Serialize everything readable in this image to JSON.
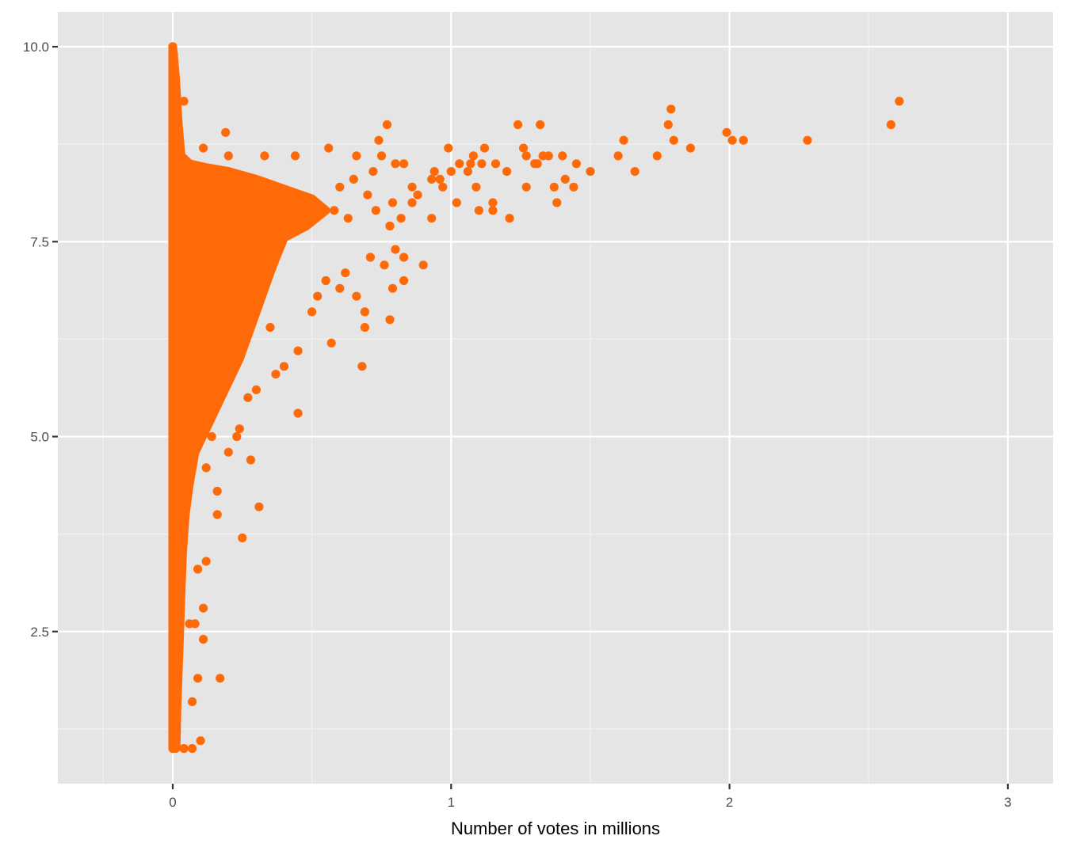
{
  "chart_data": {
    "type": "scatter",
    "title": "",
    "xlabel": "Number of votes in millions",
    "ylabel": "",
    "xlim": [
      -0.4,
      3.17
    ],
    "ylim": [
      0.65,
      10.43
    ],
    "grid": true,
    "legend": "none",
    "point_color": "#FF6A08",
    "panel_background": "#E5E5E5",
    "grid_color": "#FFFFFF",
    "x_ticks": [
      0,
      1,
      2,
      3
    ],
    "x_tick_labels": [
      "0",
      "1",
      "2",
      "3"
    ],
    "y_ticks": [
      2.5,
      5.0,
      7.5,
      10.0
    ],
    "y_tick_labels": [
      "2.5",
      "5.0",
      "7.5",
      "10.0"
    ],
    "dense_region_envelope": [
      [
        0.0,
        1.0
      ],
      [
        0.0,
        10.0
      ],
      [
        0.01,
        9.6
      ],
      [
        0.02,
        9.0
      ],
      [
        0.03,
        8.6
      ],
      [
        0.06,
        8.5
      ],
      [
        0.12,
        8.45
      ],
      [
        0.2,
        8.4
      ],
      [
        0.3,
        8.3
      ],
      [
        0.38,
        8.2
      ],
      [
        0.5,
        8.05
      ],
      [
        0.55,
        7.9
      ],
      [
        0.48,
        7.7
      ],
      [
        0.4,
        7.55
      ],
      [
        0.36,
        7.2
      ],
      [
        0.33,
        6.9
      ],
      [
        0.3,
        6.6
      ],
      [
        0.27,
        6.3
      ],
      [
        0.24,
        6.0
      ],
      [
        0.2,
        5.7
      ],
      [
        0.16,
        5.4
      ],
      [
        0.12,
        5.1
      ],
      [
        0.08,
        4.8
      ],
      [
        0.06,
        4.4
      ],
      [
        0.045,
        4.0
      ],
      [
        0.035,
        3.5
      ],
      [
        0.03,
        3.0
      ],
      [
        0.025,
        2.5
      ],
      [
        0.02,
        2.0
      ],
      [
        0.015,
        1.5
      ],
      [
        0.012,
        1.0
      ]
    ],
    "points": [
      {
        "x": 0.0,
        "y": 10.0
      },
      {
        "x": 0.003,
        "y": 9.9
      },
      {
        "x": 0.005,
        "y": 9.7
      },
      {
        "x": 0.04,
        "y": 9.3
      },
      {
        "x": 0.19,
        "y": 8.9
      },
      {
        "x": 0.11,
        "y": 8.7
      },
      {
        "x": 0.2,
        "y": 8.6
      },
      {
        "x": 0.33,
        "y": 8.6
      },
      {
        "x": 0.44,
        "y": 8.6
      },
      {
        "x": 0.56,
        "y": 8.7
      },
      {
        "x": 0.66,
        "y": 8.6
      },
      {
        "x": 0.74,
        "y": 8.8
      },
      {
        "x": 0.77,
        "y": 9.0
      },
      {
        "x": 0.75,
        "y": 8.6
      },
      {
        "x": 0.8,
        "y": 8.5
      },
      {
        "x": 0.83,
        "y": 8.5
      },
      {
        "x": 0.86,
        "y": 8.2
      },
      {
        "x": 0.93,
        "y": 8.3
      },
      {
        "x": 0.94,
        "y": 8.4
      },
      {
        "x": 0.96,
        "y": 8.3
      },
      {
        "x": 0.99,
        "y": 8.7
      },
      {
        "x": 0.97,
        "y": 8.2
      },
      {
        "x": 1.0,
        "y": 8.4
      },
      {
        "x": 1.03,
        "y": 8.5
      },
      {
        "x": 1.06,
        "y": 8.4
      },
      {
        "x": 1.07,
        "y": 8.5
      },
      {
        "x": 1.08,
        "y": 8.6
      },
      {
        "x": 1.11,
        "y": 8.5
      },
      {
        "x": 1.12,
        "y": 8.7
      },
      {
        "x": 1.16,
        "y": 8.5
      },
      {
        "x": 1.2,
        "y": 8.4
      },
      {
        "x": 1.24,
        "y": 9.0
      },
      {
        "x": 1.26,
        "y": 8.7
      },
      {
        "x": 1.27,
        "y": 8.6
      },
      {
        "x": 1.3,
        "y": 8.5
      },
      {
        "x": 1.31,
        "y": 8.5
      },
      {
        "x": 1.32,
        "y": 9.0
      },
      {
        "x": 1.33,
        "y": 8.6
      },
      {
        "x": 1.35,
        "y": 8.6
      },
      {
        "x": 1.4,
        "y": 8.6
      },
      {
        "x": 1.45,
        "y": 8.5
      },
      {
        "x": 1.5,
        "y": 8.4
      },
      {
        "x": 1.41,
        "y": 8.3
      },
      {
        "x": 1.37,
        "y": 8.2
      },
      {
        "x": 1.44,
        "y": 8.2
      },
      {
        "x": 1.27,
        "y": 8.2
      },
      {
        "x": 1.38,
        "y": 8.0
      },
      {
        "x": 1.21,
        "y": 7.8
      },
      {
        "x": 1.15,
        "y": 7.9
      },
      {
        "x": 1.15,
        "y": 8.0
      },
      {
        "x": 1.1,
        "y": 7.9
      },
      {
        "x": 1.09,
        "y": 8.2
      },
      {
        "x": 1.02,
        "y": 8.0
      },
      {
        "x": 0.93,
        "y": 7.8
      },
      {
        "x": 0.9,
        "y": 7.2
      },
      {
        "x": 0.83,
        "y": 7.0
      },
      {
        "x": 0.83,
        "y": 7.3
      },
      {
        "x": 0.79,
        "y": 6.9
      },
      {
        "x": 0.78,
        "y": 6.5
      },
      {
        "x": 0.69,
        "y": 6.6
      },
      {
        "x": 0.69,
        "y": 6.4
      },
      {
        "x": 0.68,
        "y": 5.9
      },
      {
        "x": 0.57,
        "y": 6.2
      },
      {
        "x": 0.45,
        "y": 6.1
      },
      {
        "x": 0.45,
        "y": 5.3
      },
      {
        "x": 0.4,
        "y": 5.9
      },
      {
        "x": 0.37,
        "y": 5.8
      },
      {
        "x": 0.31,
        "y": 4.1
      },
      {
        "x": 0.28,
        "y": 4.7
      },
      {
        "x": 0.25,
        "y": 3.7
      },
      {
        "x": 0.16,
        "y": 4.3
      },
      {
        "x": 0.16,
        "y": 4.0
      },
      {
        "x": 0.12,
        "y": 4.6
      },
      {
        "x": 0.12,
        "y": 3.4
      },
      {
        "x": 0.11,
        "y": 2.8
      },
      {
        "x": 0.11,
        "y": 2.4
      },
      {
        "x": 0.1,
        "y": 1.1
      },
      {
        "x": 0.07,
        "y": 1.0
      },
      {
        "x": 0.04,
        "y": 1.0
      },
      {
        "x": 0.07,
        "y": 1.6
      },
      {
        "x": 0.09,
        "y": 1.9
      },
      {
        "x": 0.17,
        "y": 1.9
      },
      {
        "x": 0.09,
        "y": 3.3
      },
      {
        "x": 0.06,
        "y": 2.6
      },
      {
        "x": 0.08,
        "y": 2.6
      },
      {
        "x": 0.23,
        "y": 5.0
      },
      {
        "x": 0.24,
        "y": 5.1
      },
      {
        "x": 0.2,
        "y": 4.8
      },
      {
        "x": 0.14,
        "y": 5.0
      },
      {
        "x": 0.27,
        "y": 5.5
      },
      {
        "x": 0.3,
        "y": 5.6
      },
      {
        "x": 0.35,
        "y": 6.4
      },
      {
        "x": 0.5,
        "y": 6.6
      },
      {
        "x": 0.52,
        "y": 6.8
      },
      {
        "x": 0.55,
        "y": 7.0
      },
      {
        "x": 0.6,
        "y": 6.9
      },
      {
        "x": 0.62,
        "y": 7.1
      },
      {
        "x": 0.66,
        "y": 6.8
      },
      {
        "x": 0.71,
        "y": 7.3
      },
      {
        "x": 0.76,
        "y": 7.2
      },
      {
        "x": 0.8,
        "y": 7.4
      },
      {
        "x": 0.82,
        "y": 7.8
      },
      {
        "x": 0.78,
        "y": 7.7
      },
      {
        "x": 0.86,
        "y": 8.0
      },
      {
        "x": 0.88,
        "y": 8.1
      },
      {
        "x": 0.7,
        "y": 8.1
      },
      {
        "x": 0.65,
        "y": 8.3
      },
      {
        "x": 0.6,
        "y": 8.2
      },
      {
        "x": 0.72,
        "y": 8.4
      },
      {
        "x": 0.79,
        "y": 8.0
      },
      {
        "x": 0.73,
        "y": 7.9
      },
      {
        "x": 0.63,
        "y": 7.8
      },
      {
        "x": 0.58,
        "y": 7.9
      },
      {
        "x": 1.6,
        "y": 8.6
      },
      {
        "x": 1.62,
        "y": 8.8
      },
      {
        "x": 1.66,
        "y": 8.4
      },
      {
        "x": 1.74,
        "y": 8.6
      },
      {
        "x": 1.78,
        "y": 9.0
      },
      {
        "x": 1.79,
        "y": 9.2
      },
      {
        "x": 1.8,
        "y": 8.8
      },
      {
        "x": 1.86,
        "y": 8.7
      },
      {
        "x": 1.99,
        "y": 8.9
      },
      {
        "x": 2.01,
        "y": 8.8
      },
      {
        "x": 2.05,
        "y": 8.8
      },
      {
        "x": 2.28,
        "y": 8.8
      },
      {
        "x": 2.58,
        "y": 9.0
      },
      {
        "x": 2.61,
        "y": 9.3
      }
    ]
  }
}
